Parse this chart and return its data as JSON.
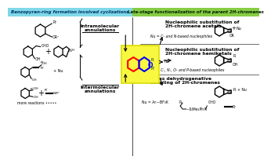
{
  "left_header_text": "Benzopyran-ring formation involved cyclizations",
  "right_header_text": "Late-stage functionalization of the parent 2H-chromenes",
  "left_header_bg": "#7FD8E8",
  "right_header_bg": "#88CC44",
  "center_box_bg": "#F8F840",
  "bg_color": "#FFFFFF",
  "left_label1": "Intramolecular\nannulations",
  "left_label2": "Intermolecular\nannulations",
  "right_label1": "Nucleophilic substitution of\n2H-chromene acetals",
  "right_label2": "Nucleophilic substitution of\n2H-chromene hemiketals",
  "right_label3": "Cross dehydrogenative\ncoupling of 2H-chromenes",
  "nu_text1": "Nu = C- and N-based nucleophiles",
  "nu_text2": "Nu = C-, N-, O- and P-based nucleophiles",
  "more_text": "more reactions •••••"
}
